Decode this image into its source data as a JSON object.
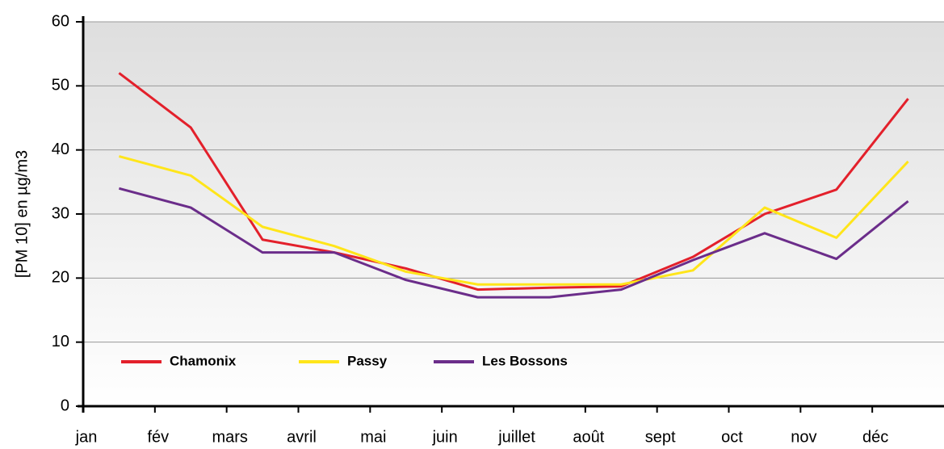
{
  "chart_data": {
    "type": "line",
    "y_label": "[PM 10] en µg/m3",
    "categories": [
      "jan",
      "fév",
      "mars",
      "avril",
      "mai",
      "juin",
      "juillet",
      "août",
      "sept",
      "oct",
      "nov",
      "déc"
    ],
    "series": [
      {
        "name": "Chamonix",
        "color": "#e3202b",
        "values": [
          52,
          43.5,
          26,
          24,
          21.5,
          18.2,
          18.5,
          18.7,
          23.3,
          30,
          33.8,
          48
        ]
      },
      {
        "name": "Passy",
        "color": "#ffe51a",
        "values": [
          39,
          36,
          28,
          25,
          21,
          19,
          19,
          19,
          21.2,
          31,
          26.3,
          38.2
        ]
      },
      {
        "name": "Les Bossons",
        "color": "#6b2d8a",
        "values": [
          34,
          31,
          24,
          24,
          19.7,
          17,
          17,
          18.2,
          22.8,
          27,
          23,
          32
        ]
      }
    ],
    "ylim": [
      0,
      60
    ],
    "yticks": [
      0,
      10,
      20,
      30,
      40,
      50,
      60
    ],
    "grid": true,
    "legend": "lower left"
  }
}
